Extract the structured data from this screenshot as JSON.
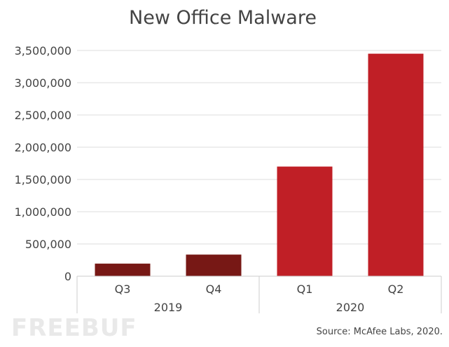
{
  "chart_data": {
    "type": "bar",
    "title": "New Office Malware",
    "categories": [
      "Q3",
      "Q4",
      "Q1",
      "Q2"
    ],
    "groups": [
      {
        "label": "2019",
        "categories": [
          "Q3",
          "Q4"
        ]
      },
      {
        "label": "2020",
        "categories": [
          "Q1",
          "Q2"
        ]
      }
    ],
    "values": [
      195000,
      335000,
      1700000,
      3450000
    ],
    "colors": [
      "#771815",
      "#771815",
      "#c01f26",
      "#c01f26"
    ],
    "ylim": [
      0,
      3500000
    ],
    "yticks": [
      0,
      500000,
      1000000,
      1500000,
      2000000,
      2500000,
      3000000,
      3500000
    ],
    "ytick_labels": [
      "0",
      "500,000",
      "1,000,000",
      "1,500,000",
      "2,000,000",
      "2,500,000",
      "3,000,000",
      "3,500,000"
    ],
    "grid": true,
    "xlabel": "",
    "ylabel": ""
  },
  "source": "Source: McAfee Labs, 2020.",
  "watermark": "FREEBUF"
}
